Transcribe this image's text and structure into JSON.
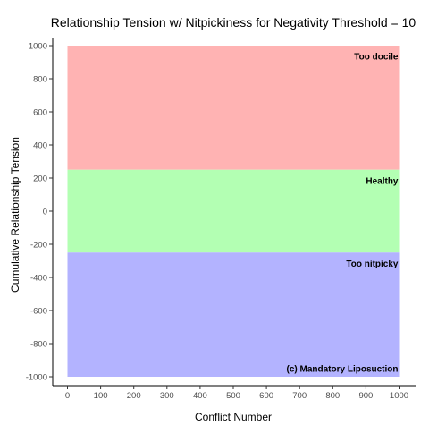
{
  "chart_data": {
    "type": "area",
    "title": "Relationship Tension w/ Nitpickiness for Negativity Threshold = 10",
    "xlabel": "Conflict Number",
    "ylabel": "Cumulative Relationship Tension",
    "xlim": [
      0,
      1000
    ],
    "ylim": [
      -1000,
      1000
    ],
    "xticks": [
      0,
      100,
      200,
      300,
      400,
      500,
      600,
      700,
      800,
      900,
      1000
    ],
    "yticks": [
      -1000,
      -800,
      -600,
      -400,
      -200,
      0,
      200,
      400,
      600,
      800,
      1000
    ],
    "grid": false,
    "bands": [
      {
        "label": "Too docile",
        "ymin": 250,
        "ymax": 1000,
        "color": "#ffb3b3"
      },
      {
        "label": "Healthy",
        "ymin": -250,
        "ymax": 250,
        "color": "#b3ffb3"
      },
      {
        "label": "Too nitpicky",
        "ymin": -1000,
        "ymax": -250,
        "color": "#b3b3ff"
      }
    ],
    "annotations": [
      {
        "text": "Too docile",
        "x": 1000,
        "y": 935
      },
      {
        "text": "Healthy",
        "x": 1000,
        "y": 185
      },
      {
        "text": "Too nitpicky",
        "x": 1000,
        "y": -315
      },
      {
        "text": "(c) Mandatory Liposuction",
        "x": 1000,
        "y": -950
      }
    ]
  }
}
